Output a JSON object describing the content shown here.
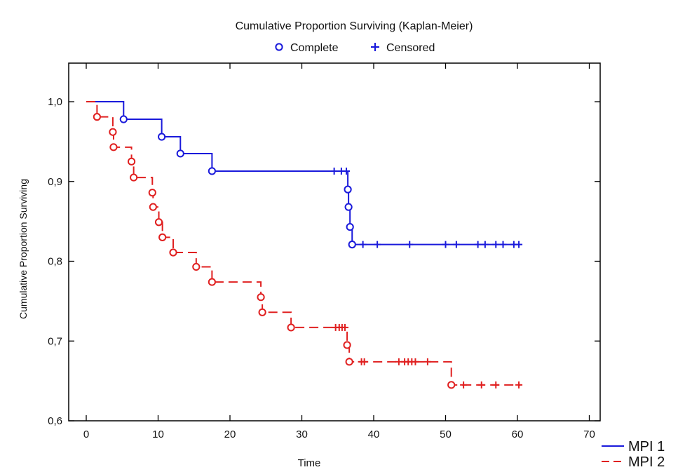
{
  "chart_data": {
    "type": "line",
    "title": "Cumulative Proportion Surviving (Kaplan-Meier)",
    "xlabel": "Time",
    "ylabel": "Cumulative Proportion Surviving",
    "xlim": [
      0,
      70
    ],
    "ylim": [
      0.6,
      1.05
    ],
    "x_ticks": [
      0,
      10,
      20,
      30,
      40,
      50,
      60,
      70
    ],
    "y_ticks": [
      0.6,
      0.7,
      0.8,
      0.9,
      1.0
    ],
    "y_tick_labels": [
      "0,6",
      "0,7",
      "0,8",
      "0,9",
      "1,0"
    ],
    "grid": false,
    "marker_legend": [
      {
        "label": "Complete",
        "symbol": "circle",
        "color": "#1a1adb"
      },
      {
        "label": "Censored",
        "symbol": "plus",
        "color": "#1a1adb"
      }
    ],
    "legend_position": "bottom-right",
    "series": [
      {
        "name": "MPI 1",
        "color": "#1a1adb",
        "line_style": "solid",
        "steps": [
          [
            0,
            1.0
          ],
          [
            5.2,
            0.978
          ],
          [
            10.5,
            0.956
          ],
          [
            13.1,
            0.935
          ],
          [
            17.5,
            0.913
          ],
          [
            36.4,
            0.89
          ],
          [
            36.5,
            0.868
          ],
          [
            36.7,
            0.843
          ],
          [
            37.0,
            0.821
          ]
        ],
        "complete_points": [
          [
            5.2,
            0.978
          ],
          [
            10.5,
            0.956
          ],
          [
            13.1,
            0.935
          ],
          [
            17.5,
            0.913
          ],
          [
            36.4,
            0.89
          ],
          [
            36.5,
            0.868
          ],
          [
            36.7,
            0.843
          ],
          [
            37.0,
            0.821
          ]
        ],
        "censored_points": [
          [
            34.5,
            0.913
          ],
          [
            35.5,
            0.913
          ],
          [
            36.2,
            0.913
          ],
          [
            38.5,
            0.821
          ],
          [
            40.5,
            0.821
          ],
          [
            45.0,
            0.821
          ],
          [
            50.0,
            0.821
          ],
          [
            51.5,
            0.821
          ],
          [
            54.5,
            0.821
          ],
          [
            55.5,
            0.821
          ],
          [
            57.0,
            0.821
          ],
          [
            58.0,
            0.821
          ],
          [
            59.5,
            0.821
          ],
          [
            60.2,
            0.821
          ]
        ],
        "end_x": 60.3
      },
      {
        "name": "MPI 2",
        "color": "#e02020",
        "line_style": "dashed",
        "steps": [
          [
            0,
            1.0
          ],
          [
            1.5,
            0.981
          ],
          [
            3.7,
            0.962
          ],
          [
            3.8,
            0.943
          ],
          [
            6.3,
            0.925
          ],
          [
            6.6,
            0.905
          ],
          [
            9.2,
            0.886
          ],
          [
            9.3,
            0.868
          ],
          [
            10.1,
            0.849
          ],
          [
            10.6,
            0.83
          ],
          [
            12.1,
            0.811
          ],
          [
            15.3,
            0.793
          ],
          [
            17.5,
            0.774
          ],
          [
            24.3,
            0.755
          ],
          [
            24.5,
            0.736
          ],
          [
            28.5,
            0.717
          ],
          [
            36.3,
            0.695
          ],
          [
            36.6,
            0.674
          ],
          [
            50.8,
            0.645
          ]
        ],
        "complete_points": [
          [
            1.5,
            0.981
          ],
          [
            3.7,
            0.962
          ],
          [
            3.8,
            0.943
          ],
          [
            6.3,
            0.925
          ],
          [
            6.6,
            0.905
          ],
          [
            9.2,
            0.886
          ],
          [
            9.3,
            0.868
          ],
          [
            10.1,
            0.849
          ],
          [
            10.6,
            0.83
          ],
          [
            12.1,
            0.811
          ],
          [
            15.3,
            0.793
          ],
          [
            17.5,
            0.774
          ],
          [
            24.3,
            0.755
          ],
          [
            24.5,
            0.736
          ],
          [
            28.5,
            0.717
          ],
          [
            36.3,
            0.695
          ],
          [
            36.6,
            0.674
          ],
          [
            50.8,
            0.645
          ]
        ],
        "censored_points": [
          [
            34.7,
            0.717
          ],
          [
            35.2,
            0.717
          ],
          [
            35.6,
            0.717
          ],
          [
            36.0,
            0.717
          ],
          [
            38.3,
            0.674
          ],
          [
            38.7,
            0.674
          ],
          [
            43.5,
            0.674
          ],
          [
            44.3,
            0.674
          ],
          [
            44.8,
            0.674
          ],
          [
            45.3,
            0.674
          ],
          [
            45.8,
            0.674
          ],
          [
            47.5,
            0.674
          ],
          [
            52.5,
            0.645
          ],
          [
            55.0,
            0.645
          ],
          [
            57.0,
            0.645
          ],
          [
            60.2,
            0.645
          ]
        ],
        "end_x": 60.4
      }
    ]
  }
}
